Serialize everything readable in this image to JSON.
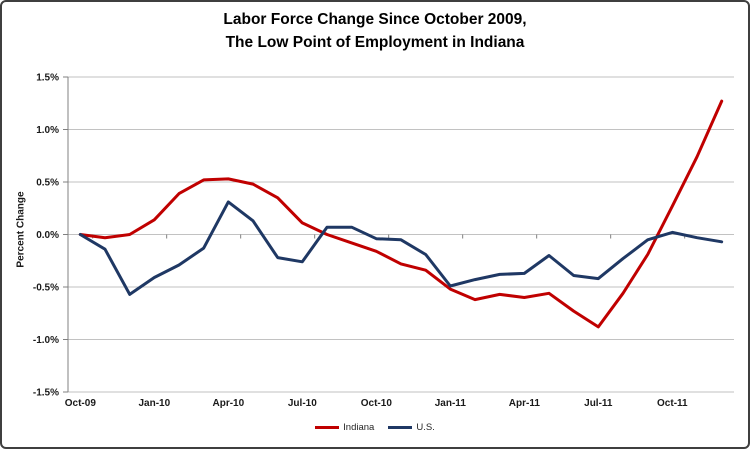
{
  "figure": {
    "background": "#ffffff",
    "border_color": "#3f3f3f"
  },
  "chart_data": {
    "type": "line",
    "title_line1": "Labor Force Change Since October 2009,",
    "title_line2": "The Low Point of Employment in Indiana",
    "ylabel": "Percent Change",
    "ylim": [
      -1.5,
      1.5
    ],
    "y_tick_step": 0.5,
    "y_tick_labels": [
      "1.5%",
      "1.0%",
      "0.5%",
      "0.0%",
      "-0.5%",
      "-1.0%",
      "-1.5%"
    ],
    "x_tick_labels": [
      "Oct-09",
      "Jan-10",
      "Apr-10",
      "Jul-10",
      "Oct-10",
      "Jan-11",
      "Apr-11",
      "Jul-11",
      "Oct-11"
    ],
    "x_tick_every": 3,
    "grid": true,
    "legend_position": "bottom-center",
    "gridline_color": "#c2c2c2",
    "axis_color": "#808080",
    "text_color": "#1a1a1a",
    "categories": [
      "Oct-09",
      "Nov-09",
      "Dec-09",
      "Jan-10",
      "Feb-10",
      "Mar-10",
      "Apr-10",
      "May-10",
      "Jun-10",
      "Jul-10",
      "Aug-10",
      "Sep-10",
      "Oct-10",
      "Nov-10",
      "Dec-10",
      "Jan-11",
      "Feb-11",
      "Mar-11",
      "Apr-11",
      "May-11",
      "Jun-11",
      "Jul-11",
      "Aug-11",
      "Sep-11",
      "Oct-11",
      "Nov-11",
      "Dec-11"
    ],
    "series": [
      {
        "name": "Indiana",
        "color": "#c00000",
        "values": [
          0.0,
          -0.03,
          0.0,
          0.14,
          0.39,
          0.52,
          0.53,
          0.48,
          0.35,
          0.11,
          0.0,
          -0.08,
          -0.16,
          -0.28,
          -0.34,
          -0.52,
          -0.62,
          -0.57,
          -0.6,
          -0.56,
          -0.73,
          -0.88,
          -0.56,
          -0.19,
          0.27,
          0.74,
          1.27
        ]
      },
      {
        "name": "U.S.",
        "color": "#1f3864",
        "values": [
          0.0,
          -0.14,
          -0.57,
          -0.41,
          -0.29,
          -0.13,
          0.31,
          0.13,
          -0.22,
          -0.26,
          0.07,
          0.07,
          -0.04,
          -0.05,
          -0.19,
          -0.49,
          -0.43,
          -0.38,
          -0.37,
          -0.2,
          -0.39,
          -0.42,
          -0.23,
          -0.05,
          0.02,
          -0.03,
          -0.07
        ]
      }
    ]
  }
}
